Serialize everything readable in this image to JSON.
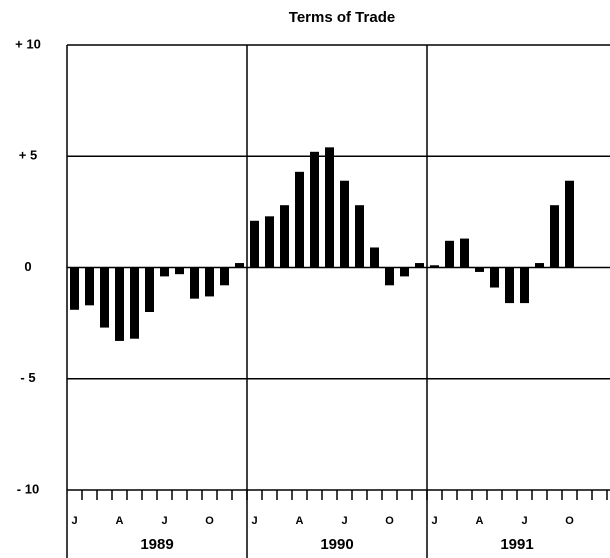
{
  "chart_data": {
    "type": "bar",
    "title": "Terms of Trade",
    "categories": [
      "J",
      null,
      null,
      "A",
      null,
      null,
      "J",
      null,
      null,
      "O",
      null,
      null,
      "J",
      null,
      null,
      "A",
      null,
      null,
      "J",
      null,
      null,
      "O",
      null,
      null,
      "J",
      null,
      null,
      "A",
      null,
      null,
      "J",
      null,
      null,
      "O",
      null,
      null
    ],
    "years": [
      "1989",
      "1990",
      "1991"
    ],
    "values": [
      -1.9,
      -1.7,
      -2.7,
      -3.3,
      -3.2,
      -2.0,
      -0.4,
      -0.3,
      -1.4,
      -1.3,
      -0.8,
      0.2,
      2.1,
      2.3,
      2.8,
      4.3,
      5.2,
      5.4,
      3.9,
      2.8,
      0.9,
      -0.8,
      -0.4,
      0.2,
      0.1,
      1.2,
      1.3,
      -0.2,
      -0.9,
      -1.6,
      -1.6,
      0.2,
      2.8,
      3.9,
      null,
      null
    ],
    "color": "#000000",
    "ylim": [
      -10,
      10
    ],
    "yticks": [
      {
        "value": 10,
        "label": "+ 10"
      },
      {
        "value": 5,
        "label": "+ 5"
      },
      0,
      {
        "value": -5,
        "label": "- 5"
      },
      {
        "value": -10,
        "label": "- 10"
      }
    ],
    "grid": true
  }
}
